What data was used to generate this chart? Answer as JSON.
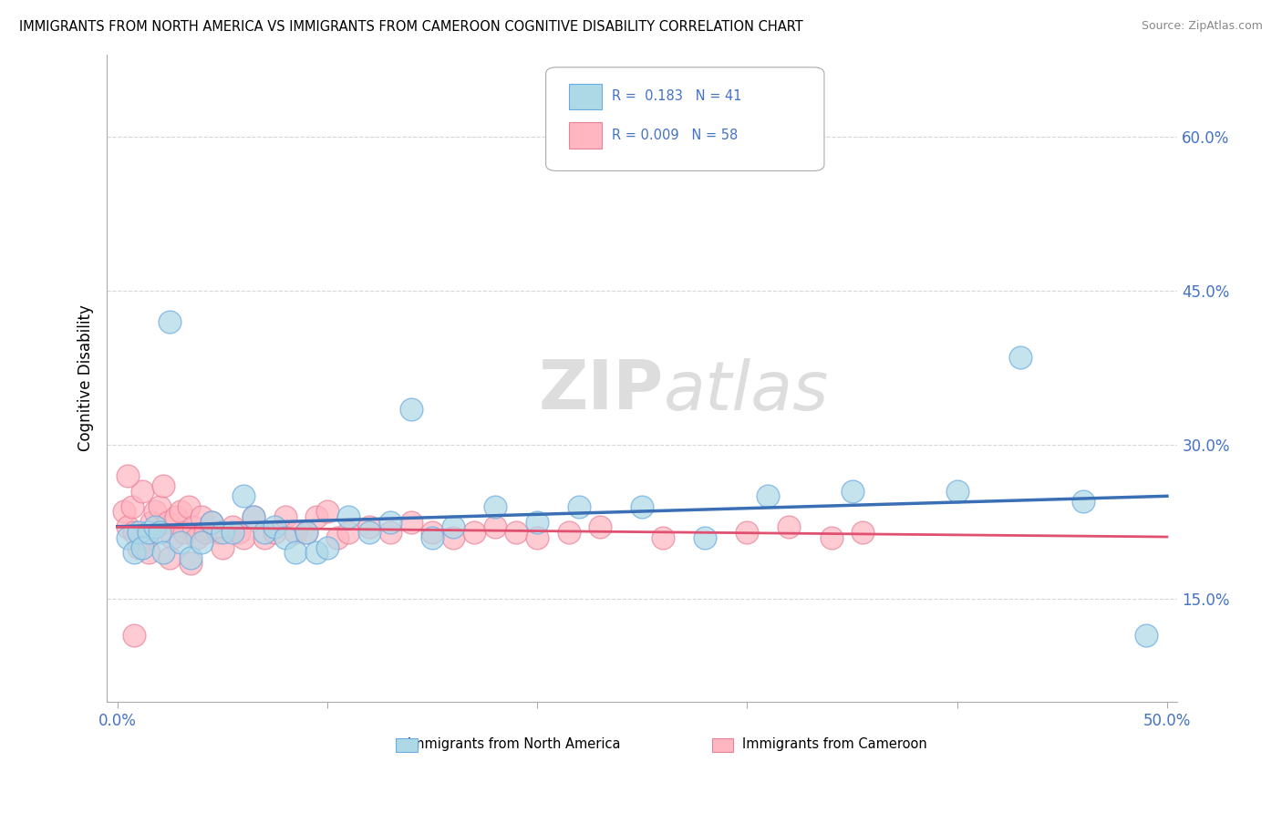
{
  "title": "IMMIGRANTS FROM NORTH AMERICA VS IMMIGRANTS FROM CAMEROON COGNITIVE DISABILITY CORRELATION CHART",
  "source": "Source: ZipAtlas.com",
  "ylabel": "Cognitive Disability",
  "ytick_labels": [
    "15.0%",
    "30.0%",
    "45.0%",
    "60.0%"
  ],
  "ytick_values": [
    0.15,
    0.3,
    0.45,
    0.6
  ],
  "xlim": [
    -0.005,
    0.505
  ],
  "ylim": [
    0.05,
    0.68
  ],
  "color_blue": "#ADD8E6",
  "color_pink": "#FFB6C1",
  "color_blue_edge": "#6AABE0",
  "color_pink_edge": "#E8829A",
  "color_blue_line": "#3A6EB5",
  "color_pink_line": "#E05070",
  "watermark_color": "#D8D8D8",
  "north_america_x": [
    0.005,
    0.008,
    0.01,
    0.012,
    0.015,
    0.018,
    0.02,
    0.022,
    0.025,
    0.03,
    0.035,
    0.04,
    0.045,
    0.05,
    0.055,
    0.06,
    0.065,
    0.07,
    0.075,
    0.08,
    0.085,
    0.09,
    0.095,
    0.1,
    0.11,
    0.12,
    0.13,
    0.14,
    0.15,
    0.16,
    0.18,
    0.2,
    0.22,
    0.25,
    0.28,
    0.31,
    0.35,
    0.4,
    0.43,
    0.46,
    0.49
  ],
  "north_america_y": [
    0.21,
    0.195,
    0.215,
    0.2,
    0.215,
    0.22,
    0.215,
    0.195,
    0.42,
    0.205,
    0.19,
    0.205,
    0.225,
    0.215,
    0.215,
    0.25,
    0.23,
    0.215,
    0.22,
    0.21,
    0.195,
    0.215,
    0.195,
    0.2,
    0.23,
    0.215,
    0.225,
    0.335,
    0.21,
    0.22,
    0.24,
    0.225,
    0.24,
    0.24,
    0.21,
    0.25,
    0.255,
    0.255,
    0.385,
    0.245,
    0.115
  ],
  "cameroon_x": [
    0.003,
    0.005,
    0.007,
    0.008,
    0.01,
    0.012,
    0.014,
    0.016,
    0.018,
    0.02,
    0.022,
    0.024,
    0.026,
    0.028,
    0.03,
    0.032,
    0.034,
    0.036,
    0.038,
    0.04,
    0.042,
    0.045,
    0.048,
    0.05,
    0.055,
    0.058,
    0.06,
    0.065,
    0.07,
    0.075,
    0.08,
    0.085,
    0.09,
    0.095,
    0.1,
    0.105,
    0.11,
    0.12,
    0.13,
    0.14,
    0.15,
    0.16,
    0.17,
    0.18,
    0.19,
    0.2,
    0.215,
    0.23,
    0.26,
    0.3,
    0.32,
    0.34,
    0.355,
    0.005,
    0.015,
    0.025,
    0.035,
    0.008
  ],
  "cameroon_y": [
    0.235,
    0.22,
    0.24,
    0.215,
    0.2,
    0.255,
    0.21,
    0.225,
    0.235,
    0.24,
    0.26,
    0.225,
    0.21,
    0.23,
    0.235,
    0.215,
    0.24,
    0.22,
    0.21,
    0.23,
    0.215,
    0.225,
    0.215,
    0.2,
    0.22,
    0.215,
    0.21,
    0.23,
    0.21,
    0.215,
    0.23,
    0.215,
    0.215,
    0.23,
    0.235,
    0.21,
    0.215,
    0.22,
    0.215,
    0.225,
    0.215,
    0.21,
    0.215,
    0.22,
    0.215,
    0.21,
    0.215,
    0.22,
    0.21,
    0.215,
    0.22,
    0.21,
    0.215,
    0.27,
    0.195,
    0.19,
    0.185,
    0.115
  ]
}
